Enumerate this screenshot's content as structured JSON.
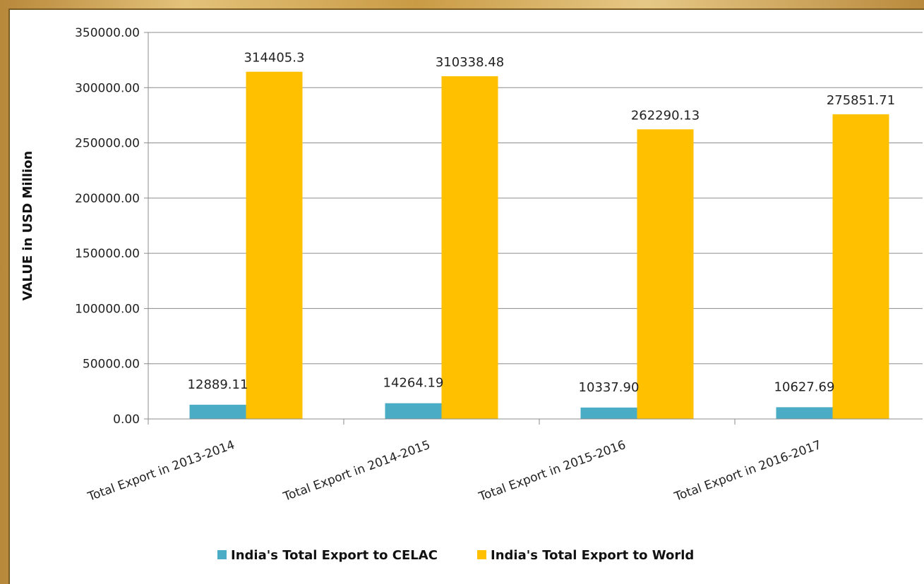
{
  "chart_data": {
    "type": "bar",
    "ylabel": "VALUE in USD Million",
    "xlabel": "",
    "ylim": [
      0,
      350000
    ],
    "yticks": [
      "0.00",
      "50000.00",
      "100000.00",
      "150000.00",
      "200000.00",
      "250000.00",
      "300000.00",
      "350000.00"
    ],
    "ytick_values": [
      0,
      50000,
      100000,
      150000,
      200000,
      250000,
      300000,
      350000
    ],
    "grid": true,
    "legend_position": "bottom",
    "categories": [
      "Total Export in 2013-2014",
      "Total Export in 2014-2015",
      "Total Export in 2015-2016",
      "Total Export in 2016-2017"
    ],
    "series": [
      {
        "name": "India's Total Export to CELAC",
        "color": "#4bacc6",
        "values": [
          12889.11,
          14264.19,
          10337.9,
          10627.69
        ],
        "labels": [
          "12889.11",
          "14264.19",
          "10337.90",
          "10627.69"
        ]
      },
      {
        "name": "India's Total Export to World",
        "color": "#ffc000",
        "values": [
          314405.3,
          310338.48,
          262290.13,
          275851.71
        ],
        "labels": [
          "314405.3",
          "310338.48",
          "262290.13",
          "275851.71"
        ]
      }
    ]
  }
}
